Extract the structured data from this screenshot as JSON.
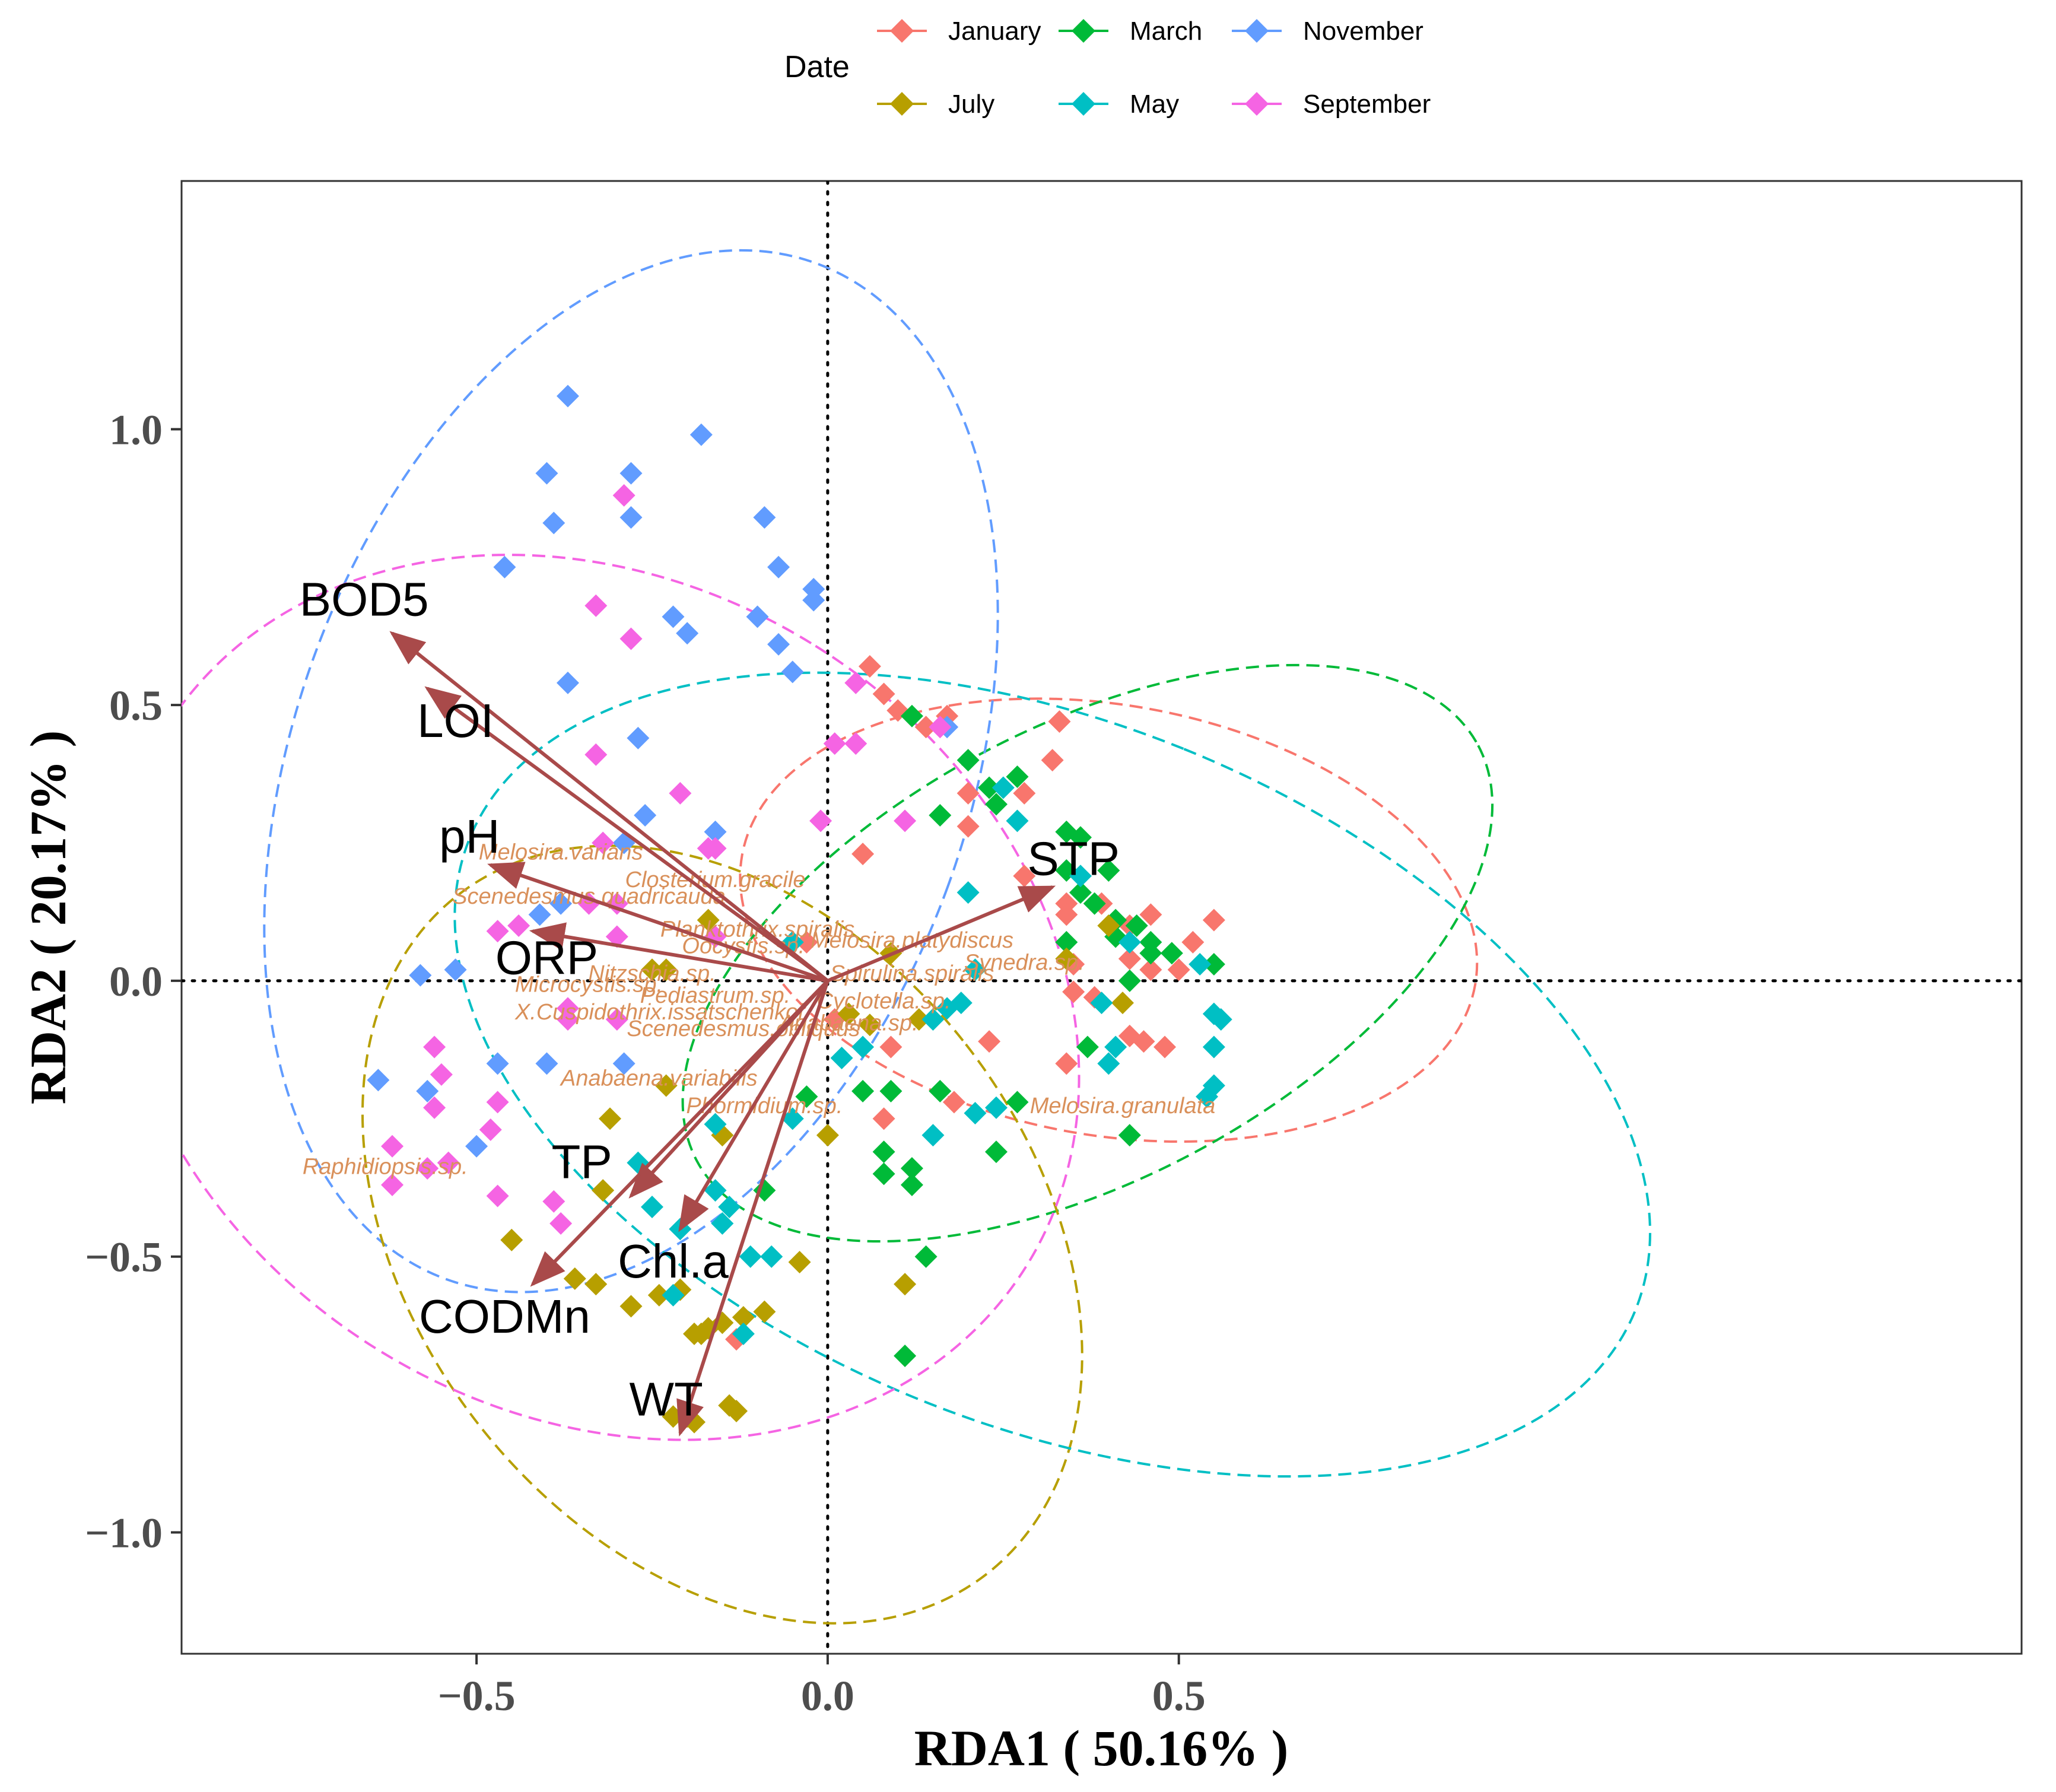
{
  "chart_data": {
    "type": "scatter",
    "subtype": "RDA biplot",
    "title": "",
    "xlabel": "RDA1 ( 50.16% )",
    "ylabel": "RDA2 ( 20.17% )",
    "xlim": [
      -0.92,
      1.7
    ],
    "ylim": [
      -1.22,
      1.45
    ],
    "xticks": [
      -0.5,
      0.0,
      0.5
    ],
    "xtick_labels": [
      "−0.5",
      "0.0",
      "0.5"
    ],
    "yticks": [
      -1.0,
      -0.5,
      0.0,
      0.5,
      1.0
    ],
    "ytick_labels": [
      "−1.0",
      "−0.5",
      "0.0",
      "0.5",
      "1.0"
    ],
    "grid": false,
    "zero_lines": "dotted",
    "legend": {
      "title": "Date",
      "position": "top",
      "entries": [
        {
          "name": "January",
          "color": "#F8766D"
        },
        {
          "name": "March",
          "color": "#00BA38"
        },
        {
          "name": "November",
          "color": "#619CFF"
        },
        {
          "name": "July",
          "color": "#B79F00"
        },
        {
          "name": "May",
          "color": "#00BFC4"
        },
        {
          "name": "September",
          "color": "#F564E3"
        }
      ]
    },
    "arrow_color": "#A94A4A",
    "species_color": "#D9905A",
    "env_vectors": [
      {
        "name": "BOD5",
        "x": -0.62,
        "y": 0.63,
        "label_x": -0.66,
        "label_y": 0.69
      },
      {
        "name": "LOI",
        "x": -0.57,
        "y": 0.53,
        "label_x": -0.53,
        "label_y": 0.47
      },
      {
        "name": "pH",
        "x": -0.48,
        "y": 0.21,
        "label_x": -0.51,
        "label_y": 0.26
      },
      {
        "name": "ORP",
        "x": -0.42,
        "y": 0.09,
        "label_x": -0.4,
        "label_y": 0.04
      },
      {
        "name": "TP",
        "x": -0.28,
        "y": -0.39,
        "label_x": -0.35,
        "label_y": -0.33
      },
      {
        "name": "Chl.a",
        "x": -0.21,
        "y": -0.45,
        "label_x": -0.22,
        "label_y": -0.51
      },
      {
        "name": "CODMn",
        "x": -0.42,
        "y": -0.55,
        "label_x": -0.46,
        "label_y": -0.61
      },
      {
        "name": "WT",
        "x": -0.21,
        "y": -0.82,
        "label_x": -0.23,
        "label_y": -0.76
      },
      {
        "name": "STP",
        "x": 0.32,
        "y": 0.17,
        "label_x": 0.35,
        "label_y": 0.22
      }
    ],
    "species": [
      {
        "name": "Melosira.varians",
        "x": -0.38,
        "y": 0.22
      },
      {
        "name": "Closterium.gracile",
        "x": -0.16,
        "y": 0.17
      },
      {
        "name": "Scenedesmus.quadricauda",
        "x": -0.34,
        "y": 0.14
      },
      {
        "name": "Planktothrix.spiralis",
        "x": -0.1,
        "y": 0.08
      },
      {
        "name": "Melosira.platydiscus",
        "x": 0.12,
        "y": 0.06
      },
      {
        "name": "Oocystis.sp.",
        "x": -0.12,
        "y": 0.05
      },
      {
        "name": "Microcystis.sp.",
        "x": -0.34,
        "y": -0.02
      },
      {
        "name": "Nitzschia.sp.",
        "x": -0.25,
        "y": 0.0
      },
      {
        "name": "X.Cuspidothrix.issatschenkoi",
        "x": -0.24,
        "y": -0.07
      },
      {
        "name": "Pediastrum.sp.",
        "x": -0.16,
        "y": -0.04
      },
      {
        "name": "Cyclotella.sp.",
        "x": 0.08,
        "y": -0.05
      },
      {
        "name": "Spirulina.spiralis",
        "x": 0.12,
        "y": 0.0
      },
      {
        "name": "Synedra.sp.",
        "x": 0.28,
        "y": 0.02
      },
      {
        "name": "Scenedesmus.obliquus",
        "x": -0.12,
        "y": -0.1
      },
      {
        "name": "Anabaena.sp.",
        "x": 0.03,
        "y": -0.09
      },
      {
        "name": "Anabaena.variabilis",
        "x": -0.24,
        "y": -0.19
      },
      {
        "name": "Phormidium.sp.",
        "x": -0.09,
        "y": -0.24
      },
      {
        "name": "Melosira.granulata",
        "x": 0.42,
        "y": -0.24
      },
      {
        "name": "Raphidiopsis.sp.",
        "x": -0.63,
        "y": -0.35
      }
    ],
    "series": [
      {
        "name": "January",
        "color": "#F8766D",
        "ellipse": {
          "cx": 0.4,
          "cy": 0.11,
          "rx": 0.53,
          "ry": 0.39,
          "angle": -10
        },
        "points": [
          [
            0.06,
            0.57
          ],
          [
            0.08,
            0.52
          ],
          [
            0.1,
            0.49
          ],
          [
            0.14,
            0.46
          ],
          [
            0.17,
            0.48
          ],
          [
            0.33,
            0.47
          ],
          [
            0.32,
            0.4
          ],
          [
            0.28,
            0.34
          ],
          [
            0.2,
            0.34
          ],
          [
            0.2,
            0.28
          ],
          [
            0.05,
            0.23
          ],
          [
            0.28,
            0.19
          ],
          [
            0.34,
            0.14
          ],
          [
            0.34,
            0.12
          ],
          [
            0.39,
            0.14
          ],
          [
            0.43,
            0.1
          ],
          [
            0.46,
            0.12
          ],
          [
            0.55,
            0.11
          ],
          [
            0.52,
            0.07
          ],
          [
            0.5,
            0.02
          ],
          [
            0.46,
            0.02
          ],
          [
            0.43,
            0.04
          ],
          [
            0.35,
            0.03
          ],
          [
            0.35,
            -0.02
          ],
          [
            0.38,
            -0.03
          ],
          [
            0.43,
            -0.1
          ],
          [
            0.45,
            -0.11
          ],
          [
            0.48,
            -0.12
          ],
          [
            0.34,
            -0.15
          ],
          [
            0.23,
            -0.11
          ],
          [
            0.18,
            -0.22
          ],
          [
            0.08,
            -0.25
          ],
          [
            0.09,
            -0.12
          ],
          [
            -0.03,
            0.07
          ],
          [
            0.01,
            -0.07
          ],
          [
            -0.13,
            -0.65
          ]
        ]
      },
      {
        "name": "March",
        "color": "#00BA38",
        "ellipse": {
          "cx": 0.37,
          "cy": 0.05,
          "rx": 0.63,
          "ry": 0.41,
          "angle": 28
        },
        "points": [
          [
            0.12,
            0.48
          ],
          [
            0.2,
            0.4
          ],
          [
            0.23,
            0.35
          ],
          [
            0.24,
            0.32
          ],
          [
            0.27,
            0.37
          ],
          [
            0.16,
            0.3
          ],
          [
            0.34,
            0.27
          ],
          [
            0.36,
            0.26
          ],
          [
            0.34,
            0.2
          ],
          [
            0.36,
            0.16
          ],
          [
            0.38,
            0.14
          ],
          [
            0.4,
            0.2
          ],
          [
            0.41,
            0.11
          ],
          [
            0.41,
            0.08
          ],
          [
            0.44,
            0.1
          ],
          [
            0.46,
            0.07
          ],
          [
            0.46,
            0.05
          ],
          [
            0.49,
            0.05
          ],
          [
            0.55,
            0.03
          ],
          [
            0.34,
            0.07
          ],
          [
            0.43,
            0.0
          ],
          [
            0.37,
            -0.12
          ],
          [
            0.27,
            -0.22
          ],
          [
            0.24,
            -0.31
          ],
          [
            0.16,
            -0.2
          ],
          [
            0.12,
            -0.34
          ],
          [
            0.09,
            -0.2
          ],
          [
            0.08,
            -0.31
          ],
          [
            0.05,
            -0.2
          ],
          [
            0.08,
            -0.35
          ],
          [
            0.12,
            -0.37
          ],
          [
            0.14,
            -0.5
          ],
          [
            0.11,
            -0.68
          ],
          [
            -0.09,
            -0.38
          ],
          [
            -0.03,
            -0.21
          ],
          [
            0.43,
            -0.28
          ]
        ]
      },
      {
        "name": "November",
        "color": "#619CFF",
        "ellipse": {
          "cx": -0.28,
          "cy": 0.38,
          "rx": 0.48,
          "ry": 0.98,
          "angle": -20
        },
        "points": [
          [
            -0.37,
            1.06
          ],
          [
            -0.18,
            0.99
          ],
          [
            -0.4,
            0.92
          ],
          [
            -0.28,
            0.92
          ],
          [
            -0.39,
            0.83
          ],
          [
            -0.28,
            0.84
          ],
          [
            -0.09,
            0.84
          ],
          [
            -0.46,
            0.75
          ],
          [
            -0.07,
            0.75
          ],
          [
            -0.02,
            0.71
          ],
          [
            -0.02,
            0.69
          ],
          [
            -0.22,
            0.66
          ],
          [
            -0.2,
            0.63
          ],
          [
            -0.1,
            0.66
          ],
          [
            -0.07,
            0.61
          ],
          [
            -0.05,
            0.56
          ],
          [
            -0.37,
            0.54
          ],
          [
            -0.27,
            0.44
          ],
          [
            -0.26,
            0.3
          ],
          [
            -0.16,
            0.27
          ],
          [
            -0.29,
            0.25
          ],
          [
            -0.38,
            0.14
          ],
          [
            -0.41,
            0.12
          ],
          [
            -0.58,
            0.01
          ],
          [
            -0.53,
            0.02
          ],
          [
            -0.64,
            -0.18
          ],
          [
            -0.57,
            -0.2
          ],
          [
            -0.47,
            -0.15
          ],
          [
            -0.4,
            -0.15
          ],
          [
            -0.29,
            -0.15
          ],
          [
            -0.5,
            -0.3
          ],
          [
            0.17,
            0.46
          ]
        ]
      },
      {
        "name": "July",
        "color": "#B79F00",
        "ellipse": {
          "cx": -0.15,
          "cy": -0.46,
          "rx": 0.44,
          "ry": 0.78,
          "angle": 38
        },
        "points": [
          [
            -0.17,
            0.11
          ],
          [
            -0.25,
            0.02
          ],
          [
            -0.23,
            0.02
          ],
          [
            -0.31,
            -0.25
          ],
          [
            -0.23,
            -0.19
          ],
          [
            -0.32,
            -0.38
          ],
          [
            -0.45,
            -0.47
          ],
          [
            -0.33,
            -0.55
          ],
          [
            -0.36,
            -0.54
          ],
          [
            -0.28,
            -0.59
          ],
          [
            -0.24,
            -0.57
          ],
          [
            -0.21,
            -0.56
          ],
          [
            -0.17,
            -0.63
          ],
          [
            -0.15,
            -0.62
          ],
          [
            -0.12,
            -0.61
          ],
          [
            -0.09,
            -0.6
          ],
          [
            -0.18,
            -0.64
          ],
          [
            -0.19,
            -0.64
          ],
          [
            -0.22,
            -0.79
          ],
          [
            -0.2,
            -0.79
          ],
          [
            -0.19,
            -0.8
          ],
          [
            -0.13,
            -0.78
          ],
          [
            -0.14,
            -0.77
          ],
          [
            -0.04,
            -0.51
          ],
          [
            0.0,
            -0.28
          ],
          [
            0.03,
            -0.06
          ],
          [
            0.06,
            -0.08
          ],
          [
            0.11,
            -0.55
          ],
          [
            0.13,
            -0.07
          ],
          [
            0.09,
            0.05
          ],
          [
            0.4,
            0.1
          ],
          [
            0.42,
            -0.04
          ],
          [
            0.34,
            0.04
          ],
          [
            -0.15,
            -0.28
          ]
        ]
      },
      {
        "name": "May",
        "color": "#00BFC4",
        "ellipse": {
          "cx": 0.32,
          "cy": -0.17,
          "rx": 0.5,
          "ry": 1.14,
          "angle": 68
        },
        "points": [
          [
            -0.27,
            -0.33
          ],
          [
            -0.25,
            -0.41
          ],
          [
            -0.21,
            -0.45
          ],
          [
            -0.22,
            -0.57
          ],
          [
            -0.16,
            -0.26
          ],
          [
            -0.16,
            -0.38
          ],
          [
            -0.14,
            -0.41
          ],
          [
            -0.15,
            -0.44
          ],
          [
            -0.11,
            -0.5
          ],
          [
            -0.12,
            -0.64
          ],
          [
            -0.08,
            -0.5
          ],
          [
            -0.05,
            -0.25
          ],
          [
            0.02,
            -0.14
          ],
          [
            0.05,
            -0.12
          ],
          [
            0.15,
            -0.07
          ],
          [
            0.17,
            -0.05
          ],
          [
            0.19,
            -0.04
          ],
          [
            0.21,
            -0.24
          ],
          [
            0.2,
            0.16
          ],
          [
            0.21,
            0.02
          ],
          [
            0.24,
            -0.23
          ],
          [
            0.25,
            0.35
          ],
          [
            0.27,
            0.29
          ],
          [
            0.15,
            -0.28
          ],
          [
            0.4,
            -0.15
          ],
          [
            0.41,
            -0.12
          ],
          [
            0.39,
            -0.04
          ],
          [
            0.43,
            0.07
          ],
          [
            0.53,
            0.03
          ],
          [
            0.54,
            -0.21
          ],
          [
            0.55,
            -0.19
          ],
          [
            0.55,
            -0.12
          ],
          [
            0.55,
            -0.06
          ],
          [
            0.56,
            -0.07
          ],
          [
            0.36,
            0.19
          ],
          [
            -0.05,
            0.07
          ]
        ]
      },
      {
        "name": "September",
        "color": "#F564E3",
        "ellipse": {
          "cx": -0.33,
          "cy": -0.03,
          "rx": 0.59,
          "ry": 0.92,
          "angle": 58
        },
        "points": [
          [
            -0.29,
            0.88
          ],
          [
            -0.33,
            0.68
          ],
          [
            -0.28,
            0.62
          ],
          [
            -0.21,
            0.34
          ],
          [
            -0.16,
            0.24
          ],
          [
            -0.33,
            0.41
          ],
          [
            -0.32,
            0.25
          ],
          [
            -0.3,
            0.14
          ],
          [
            -0.3,
            0.08
          ],
          [
            -0.34,
            0.14
          ],
          [
            -0.44,
            0.1
          ],
          [
            -0.47,
            0.09
          ],
          [
            -0.37,
            -0.05
          ],
          [
            -0.37,
            -0.07
          ],
          [
            -0.3,
            -0.07
          ],
          [
            -0.56,
            -0.12
          ],
          [
            -0.55,
            -0.17
          ],
          [
            -0.56,
            -0.23
          ],
          [
            -0.47,
            -0.22
          ],
          [
            -0.48,
            -0.27
          ],
          [
            -0.62,
            -0.3
          ],
          [
            -0.62,
            -0.37
          ],
          [
            -0.57,
            -0.34
          ],
          [
            -0.54,
            -0.33
          ],
          [
            -0.47,
            -0.39
          ],
          [
            -0.39,
            -0.4
          ],
          [
            -0.38,
            -0.44
          ],
          [
            -0.16,
            0.08
          ],
          [
            -0.01,
            0.29
          ],
          [
            0.01,
            0.43
          ],
          [
            0.04,
            0.43
          ],
          [
            0.04,
            0.54
          ],
          [
            0.11,
            0.29
          ],
          [
            0.16,
            0.46
          ],
          [
            -0.17,
            0.24
          ]
        ]
      }
    ]
  }
}
